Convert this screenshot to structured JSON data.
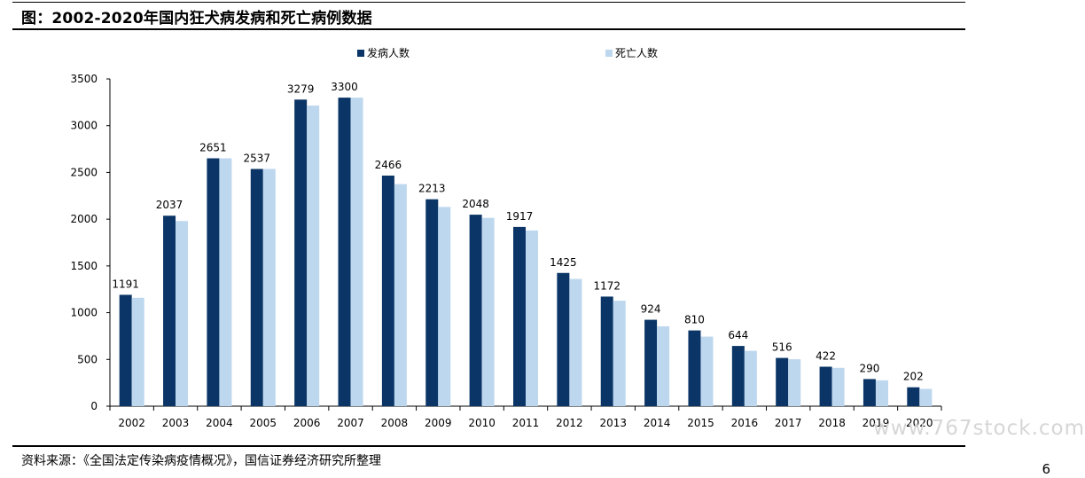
{
  "title": "图：2002-2020年国内狂犬病发病和死亡病例数据",
  "source": "资料来源：《全国法定传染病疫情概况》，国信证券经济研究所整理",
  "page_number": "6",
  "watermark": "www.767stock.com",
  "colors": {
    "onset": "#0a3566",
    "death": "#bdd7ee"
  },
  "chart_data": {
    "type": "bar",
    "categories": [
      "2002",
      "2003",
      "2004",
      "2005",
      "2006",
      "2007",
      "2008",
      "2009",
      "2010",
      "2011",
      "2012",
      "2013",
      "2014",
      "2015",
      "2016",
      "2017",
      "2018",
      "2019",
      "2020"
    ],
    "series": [
      {
        "name": "发病人数",
        "values": [
          1191,
          2037,
          2651,
          2537,
          3279,
          3300,
          2466,
          2213,
          2048,
          1917,
          1425,
          1172,
          924,
          810,
          644,
          516,
          422,
          290,
          202
        ]
      },
      {
        "name": "死亡人数",
        "values": [
          1159,
          1980,
          2651,
          2537,
          3215,
          3300,
          2375,
          2131,
          2014,
          1879,
          1361,
          1128,
          854,
          744,
          592,
          502,
          410,
          276,
          185
        ]
      }
    ],
    "data_labels_series": 0,
    "ylim": [
      0,
      3500
    ],
    "yticks": [
      0,
      500,
      1000,
      1500,
      2000,
      2500,
      3000,
      3500
    ],
    "legend": "top",
    "grid": false
  }
}
